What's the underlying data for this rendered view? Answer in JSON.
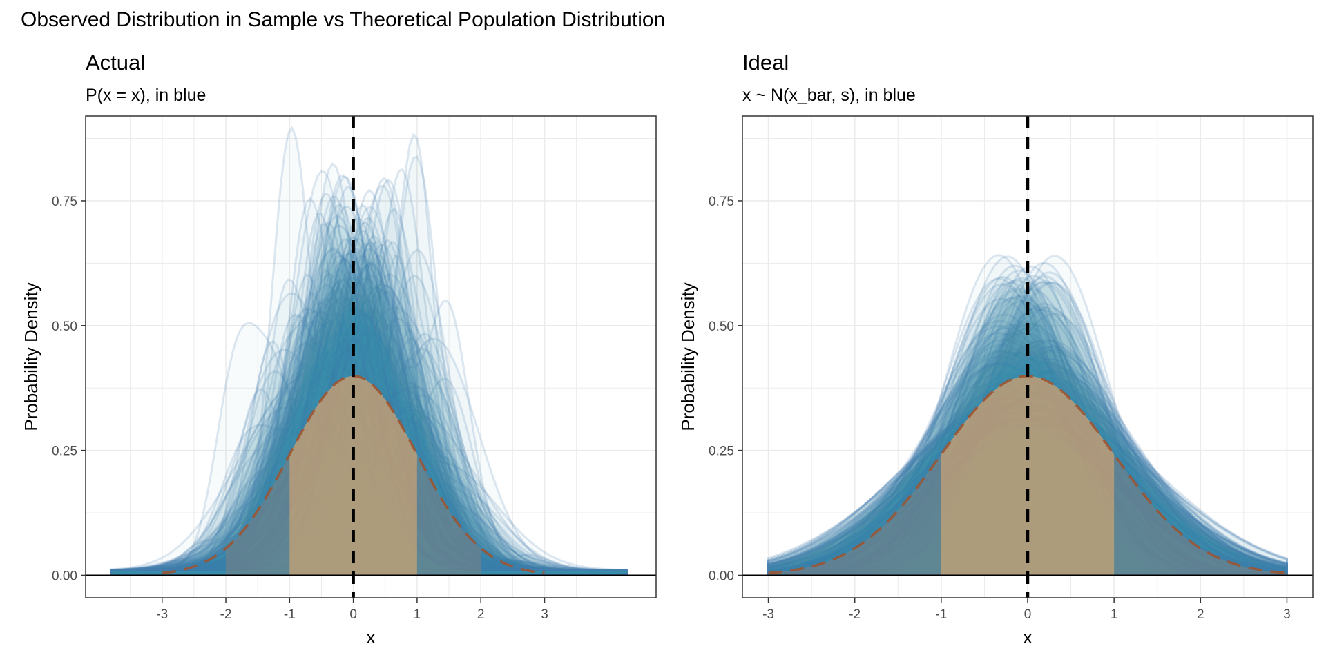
{
  "figure_title": "Observed Distribution in Sample vs Theoretical Population Distribution",
  "colors": {
    "blue": "#4682b4",
    "orange": "#f4a460",
    "population_curve": "#a0522d",
    "mean_line": "#000000",
    "grid": "#ebebeb",
    "border": "#333333"
  },
  "chart_data": [
    {
      "type": "area",
      "title": "Actual",
      "subtitle": "P(x = x), in blue",
      "xlabel": "x",
      "ylabel": "Probability Density",
      "xlim": [
        -4.2,
        4.75
      ],
      "ylim": [
        -0.045,
        0.92
      ],
      "x_ticks": [
        -3,
        -2,
        -1,
        0,
        1,
        2,
        3
      ],
      "x_tick_labels": [
        "-3",
        "-2",
        "-1",
        "0",
        "1",
        "2",
        "3"
      ],
      "y_ticks": [
        0,
        0.25,
        0.5,
        0.75
      ],
      "y_tick_labels": [
        "0.00",
        "0.25",
        "0.50",
        "0.75"
      ],
      "grid": true,
      "mean_line_x": 0,
      "shaded_bands": [
        {
          "from": -2,
          "to": -1,
          "fill": "gray"
        },
        {
          "from": -1,
          "to": 1,
          "fill": "orange"
        },
        {
          "from": 1,
          "to": 2,
          "fill": "gray"
        }
      ],
      "population_density": {
        "distribution": "normal",
        "mean": 0,
        "sd": 1
      },
      "sample_densities": {
        "kind": "kernel-density",
        "range": [
          -3.8,
          4.3
        ],
        "peak_range": [
          0.25,
          0.85
        ]
      }
    },
    {
      "type": "area",
      "title": "Ideal",
      "subtitle": "x ~ N(x_bar, s), in blue",
      "xlabel": "x",
      "ylabel": "Probability Density",
      "xlim": [
        -3.3,
        3.3
      ],
      "ylim": [
        -0.045,
        0.92
      ],
      "x_ticks": [
        -3,
        -2,
        -1,
        0,
        1,
        2,
        3
      ],
      "x_tick_labels": [
        "-3",
        "-2",
        "-1",
        "0",
        "1",
        "2",
        "3"
      ],
      "y_ticks": [
        0,
        0.25,
        0.5,
        0.75
      ],
      "y_tick_labels": [
        "0.00",
        "0.25",
        "0.50",
        "0.75"
      ],
      "grid": true,
      "mean_line_x": 0,
      "shaded_bands": [
        {
          "from": -3,
          "to": -2,
          "fill": "gray"
        },
        {
          "from": -2,
          "to": -1,
          "fill": "gray"
        },
        {
          "from": -1,
          "to": 1,
          "fill": "orange"
        },
        {
          "from": 1,
          "to": 2,
          "fill": "gray"
        },
        {
          "from": 2,
          "to": 3,
          "fill": "gray"
        }
      ],
      "population_density": {
        "distribution": "normal",
        "mean": 0,
        "sd": 1
      },
      "sample_densities": {
        "kind": "normal-fit",
        "range": [
          -3,
          3
        ],
        "peak_range": [
          0.3,
          0.64
        ]
      }
    }
  ]
}
